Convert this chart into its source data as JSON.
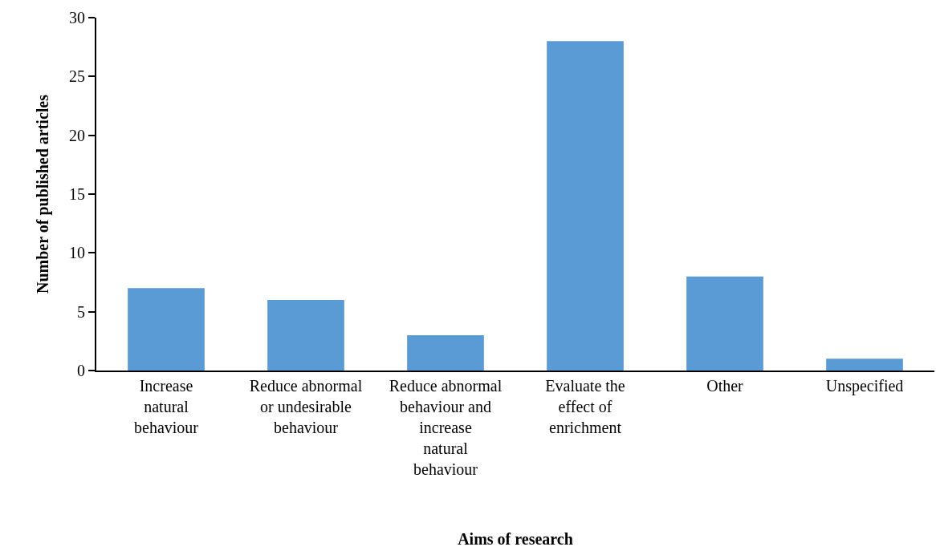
{
  "chart_data": {
    "type": "bar",
    "xlabel": "Aims of research",
    "ylabel": "Number of published articles",
    "categories": [
      "Increase natural behaviour",
      "Reduce abnormal or undesirable behaviour",
      "Reduce abnormal behaviour and increase natural behaviour",
      "Evaluate the effect of enrichment",
      "Other",
      "Unspecified"
    ],
    "values": [
      7,
      6,
      3,
      28,
      8,
      1
    ],
    "color": "#5b9bd5",
    "ylim": [
      0,
      30
    ],
    "yticks": [
      0,
      5,
      10,
      15,
      20,
      25,
      30
    ]
  }
}
